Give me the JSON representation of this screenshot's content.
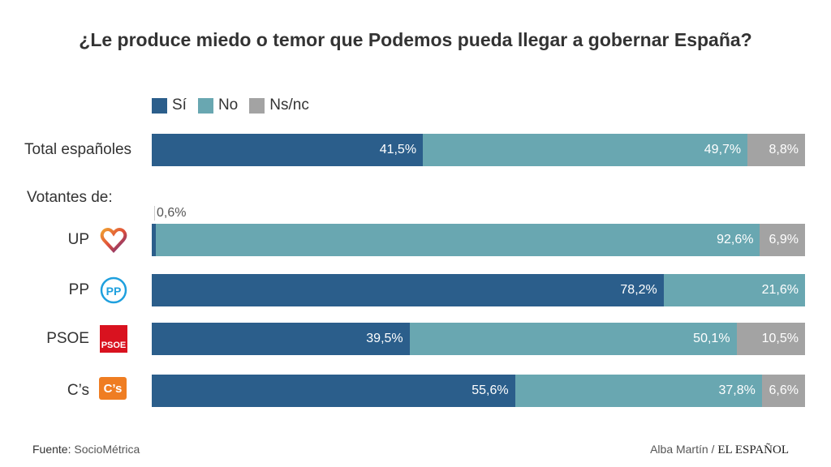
{
  "chart_data": {
    "type": "bar",
    "orientation": "horizontal-stacked",
    "title": "¿Le produce miedo o temor que Podemos pueda llegar a gobernar España?",
    "legend": [
      {
        "name": "Sí",
        "color": "#2b5e8b"
      },
      {
        "name": "No",
        "color": "#69a7b1"
      },
      {
        "name": "Ns/nc",
        "color": "#a3a3a3"
      }
    ],
    "legend_position": "top-left",
    "group_label": "Votantes de:",
    "categories": [
      "Total españoles",
      "UP",
      "PP",
      "PSOE",
      "C’s"
    ],
    "series": [
      {
        "name": "Sí",
        "values": [
          41.5,
          0.6,
          78.2,
          39.5,
          55.6
        ],
        "labels": [
          "41,5%",
          "0,6%",
          "78,2%",
          "39,5%",
          "55,6%"
        ]
      },
      {
        "name": "No",
        "values": [
          49.7,
          92.6,
          21.6,
          50.1,
          37.8
        ],
        "labels": [
          "49,7%",
          "92,6%",
          "21,6%",
          "50,1%",
          "37,8%"
        ]
      },
      {
        "name": "Ns/nc",
        "values": [
          8.8,
          6.9,
          0,
          10.5,
          6.6
        ],
        "labels": [
          "8,8%",
          "6,9%",
          "",
          "10,5%",
          "6,6%"
        ]
      }
    ],
    "xlim": [
      0,
      100
    ]
  },
  "logos": {
    "PSOE": "PSOE",
    "Cs": "C’s",
    "PP": "PP"
  },
  "footer": {
    "source_label": "Fuente:",
    "source": "SocioMétrica",
    "author": "Alba Martín /",
    "brand": "EL ESPAÑOL"
  }
}
